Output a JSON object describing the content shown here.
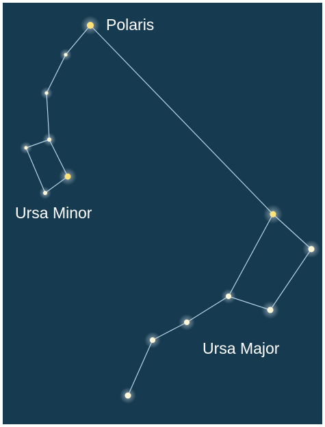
{
  "labels": {
    "polaris": "Polaris",
    "ursa_minor": "Ursa Minor",
    "ursa_major": "Ursa Major"
  }
}
